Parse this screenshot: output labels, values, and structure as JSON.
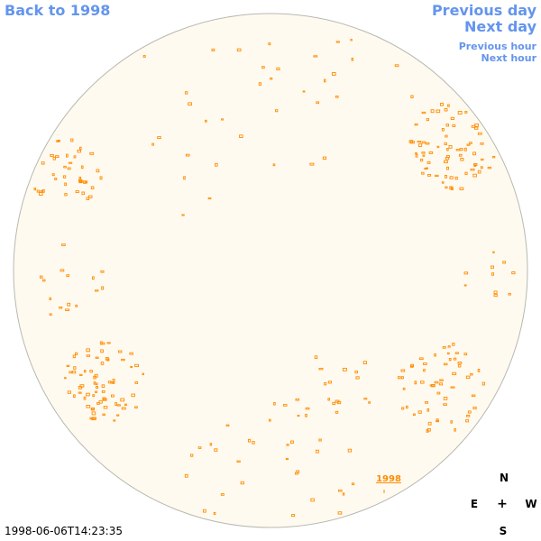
{
  "nav": {
    "back_label": "Back to 1998",
    "prev_day_label": "Previous day",
    "next_day_label": "Next day",
    "prev_hour_label": "Previous hour",
    "next_hour_label": "Next hour",
    "link_color": "#6495ed"
  },
  "sky": {
    "disk_fill": "#fffaf0",
    "disk_stroke": "#b8b8b0",
    "star_color": "#ff8c00",
    "year_label": "1998"
  },
  "footer": {
    "timestamp": "1998-06-06T14:23:35"
  },
  "compass": {
    "north": "N",
    "east": "E",
    "center": "+",
    "west": "W",
    "south": "S"
  }
}
